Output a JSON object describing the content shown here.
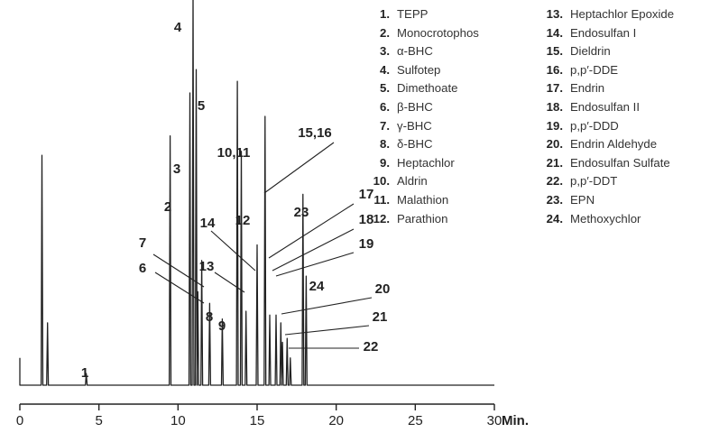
{
  "chart_data": {
    "type": "line",
    "title": "",
    "xlabel": "",
    "x_unit_label": "Min.",
    "xlim": [
      0,
      30
    ],
    "x_ticks": [
      0,
      5,
      10,
      15,
      20,
      25,
      30
    ],
    "x_tick_labels": [
      "0",
      "5",
      "10",
      "15",
      "20",
      "25",
      "30"
    ],
    "ylim": [
      0,
      100
    ],
    "baseline": 3,
    "grid": false,
    "solvent_peaks": [
      {
        "x": 1.4,
        "height": 59
      },
      {
        "x": 1.75,
        "height": 16
      }
    ],
    "peaks": [
      {
        "id": "1",
        "x": 4.2,
        "height": 3
      },
      {
        "id": "2",
        "x": 9.5,
        "height": 64
      },
      {
        "id": "3",
        "x": 10.75,
        "height": 75
      },
      {
        "id": "4",
        "x": 10.95,
        "height": 101
      },
      {
        "id": "5",
        "x": 11.15,
        "height": 81
      },
      {
        "id": "6",
        "x": 11.25,
        "height": 24
      },
      {
        "id": "7",
        "x": 11.5,
        "height": 32
      },
      {
        "id": "8",
        "x": 12.0,
        "height": 21
      },
      {
        "id": "9",
        "x": 12.8,
        "height": 17
      },
      {
        "id": "10,11",
        "x": 13.75,
        "height": 78
      },
      {
        "id": "12",
        "x": 14.0,
        "height": 60
      },
      {
        "id": "13",
        "x": 14.3,
        "height": 19
      },
      {
        "id": "14",
        "x": 15.0,
        "height": 36
      },
      {
        "id": "15,16",
        "x": 15.5,
        "height": 69
      },
      {
        "id": "17",
        "x": 15.8,
        "height": 18
      },
      {
        "id": "18",
        "x": 16.2,
        "height": 18
      },
      {
        "id": "19",
        "x": 16.5,
        "height": 16
      },
      {
        "id": "20",
        "x": 16.9,
        "height": 12
      },
      {
        "id": "21",
        "x": 16.6,
        "height": 11
      },
      {
        "id": "22",
        "x": 17.1,
        "height": 7
      },
      {
        "id": "23",
        "x": 17.9,
        "height": 49
      },
      {
        "id": "24",
        "x": 18.1,
        "height": 28
      }
    ],
    "legend": [
      {
        "num": "1.",
        "name": "TEPP"
      },
      {
        "num": "2.",
        "name": "Monocrotophos"
      },
      {
        "num": "3.",
        "name": "α-BHC"
      },
      {
        "num": "4.",
        "name": "Sulfotep"
      },
      {
        "num": "5.",
        "name": "Dimethoate"
      },
      {
        "num": "6.",
        "name": "β-BHC"
      },
      {
        "num": "7.",
        "name": "γ-BHC"
      },
      {
        "num": "8.",
        "name": "δ-BHC"
      },
      {
        "num": "9.",
        "name": "Heptachlor"
      },
      {
        "num": "10.",
        "name": "Aldrin"
      },
      {
        "num": "11.",
        "name": "Malathion"
      },
      {
        "num": "12.",
        "name": "Parathion"
      },
      {
        "num": "13.",
        "name": "Heptachlor Epoxide"
      },
      {
        "num": "14.",
        "name": "Endosulfan I"
      },
      {
        "num": "15.",
        "name": "Dieldrin"
      },
      {
        "num": "16.",
        "name": "p,p′-DDE"
      },
      {
        "num": "17.",
        "name": "Endrin"
      },
      {
        "num": "18.",
        "name": "Endosulfan II"
      },
      {
        "num": "19.",
        "name": "p,p′-DDD"
      },
      {
        "num": "20.",
        "name": "Endrin Aldehyde"
      },
      {
        "num": "21.",
        "name": "Endosulfan Sulfate"
      },
      {
        "num": "22.",
        "name": "p,p′-DDT"
      },
      {
        "num": "23.",
        "name": "EPN"
      },
      {
        "num": "24.",
        "name": "Methoxychlor"
      }
    ],
    "legend_placement": "top-right"
  }
}
